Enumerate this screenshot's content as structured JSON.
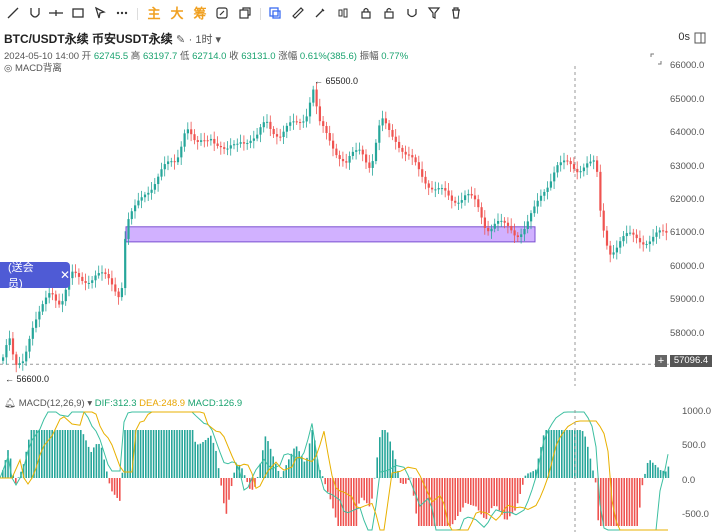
{
  "toolbar": {
    "icons": [
      "line-icon",
      "curve-icon",
      "horizontal-line-icon",
      "rectangle-icon",
      "arrow-icon",
      "more-icon",
      "main-indicator-icon",
      "big-icon",
      "chip-icon",
      "edit-icon",
      "copy-icon",
      "ruler-icon",
      "brush-icon",
      "candles-icon",
      "lock-icon",
      "magnet-icon",
      "filter-icon",
      "trash-icon"
    ],
    "main_label": "主",
    "big_label": "大",
    "chip_label": "筹"
  },
  "header": {
    "symbol": "BTC/USDT永续",
    "exchange": "币安USDT永续",
    "interval": "1时",
    "seconds_label": "0s"
  },
  "ohlc": {
    "datetime": "2024-05-10 14:00",
    "open_label": "开",
    "open": "62745.5",
    "high_label": "高",
    "high": "63197.7",
    "low_label": "低",
    "low": "62714.0",
    "close_label": "收",
    "close": "63131.0",
    "change_label": "涨幅",
    "change": "0.61%(385.6)",
    "amp_label": "振幅",
    "amp": "0.77%"
  },
  "overlay_indicator": "MACD背离",
  "yaxis": {
    "labels": [
      "66000.0",
      "65000.0",
      "64000.0",
      "63000.0",
      "62000.0",
      "61000.0",
      "60000.0",
      "59000.0",
      "58000.0"
    ],
    "crosshair_price": "57096.4"
  },
  "annotations": {
    "high": "← 65500.0",
    "low": "← 56600.0"
  },
  "promo": {
    "label": "(送会员)",
    "close": "✕"
  },
  "macd": {
    "name": "MACD(12,26,9)",
    "dif": "DIF:312.3",
    "dea": "DEA:248.9",
    "macd": "MACD:126.9",
    "yaxis": [
      "1000.0",
      "500.0",
      "0.0",
      "-500.0"
    ]
  },
  "colors": {
    "up": "#26a69a",
    "down": "#ef5350",
    "zone": "#c9a3ff"
  }
}
